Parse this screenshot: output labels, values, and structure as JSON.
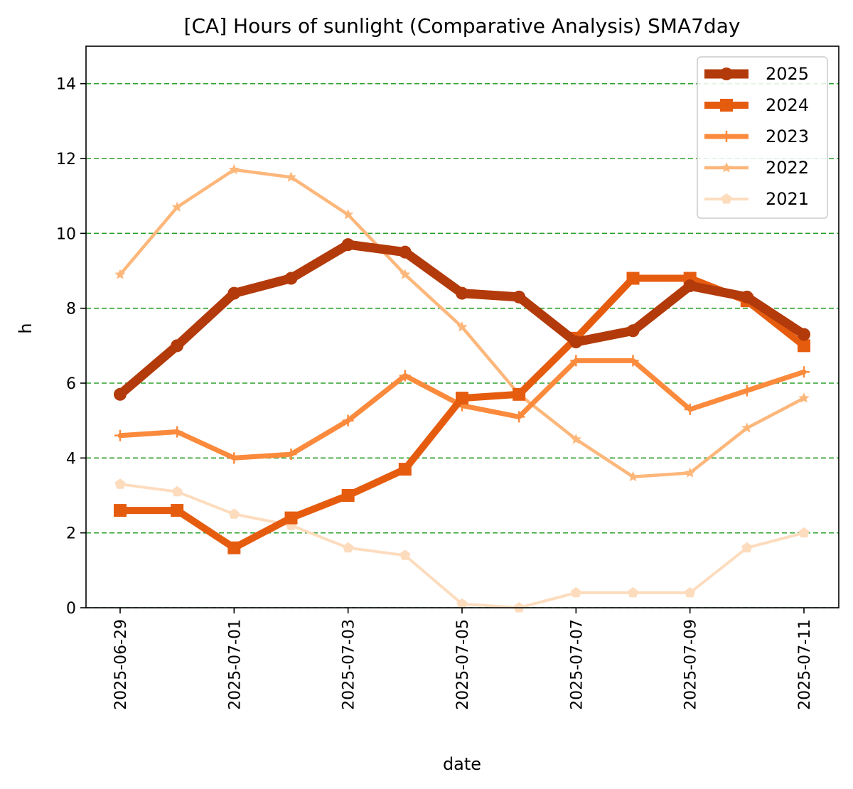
{
  "chart_data": {
    "type": "line",
    "title": "[CA] Hours of sunlight (Comparative Analysis) SMA7day",
    "xlabel": "date",
    "ylabel": "h",
    "ylim": [
      0,
      15
    ],
    "yticks": [
      0,
      2,
      4,
      6,
      8,
      10,
      12,
      14
    ],
    "grid": "horizontal dashed",
    "legend_position": "top-right",
    "x": [
      "2025-06-29",
      "2025-06-30",
      "2025-07-01",
      "2025-07-02",
      "2025-07-03",
      "2025-07-04",
      "2025-07-05",
      "2025-07-06",
      "2025-07-07",
      "2025-07-08",
      "2025-07-09",
      "2025-07-10",
      "2025-07-11"
    ],
    "xticks": [
      "2025-06-29",
      "2025-07-01",
      "2025-07-03",
      "2025-07-05",
      "2025-07-07",
      "2025-07-09",
      "2025-07-11"
    ],
    "series": [
      {
        "name": "2025",
        "color": "#b33a0a",
        "marker": "circle",
        "values": [
          5.7,
          7.0,
          8.4,
          8.8,
          9.7,
          9.5,
          8.4,
          8.3,
          7.1,
          7.4,
          8.6,
          8.3,
          7.3
        ]
      },
      {
        "name": "2024",
        "color": "#e65c0f",
        "marker": "square",
        "values": [
          2.6,
          2.6,
          1.6,
          2.4,
          3.0,
          3.7,
          5.6,
          5.7,
          7.2,
          8.8,
          8.8,
          8.2,
          7.0
        ]
      },
      {
        "name": "2023",
        "color": "#fb8a3c",
        "marker": "plus",
        "values": [
          4.6,
          4.7,
          4.0,
          4.1,
          5.0,
          6.2,
          5.4,
          5.1,
          6.6,
          6.6,
          5.3,
          5.8,
          6.3
        ]
      },
      {
        "name": "2022",
        "color": "#fdb77b",
        "marker": "star",
        "values": [
          8.9,
          10.7,
          11.7,
          11.5,
          10.5,
          8.9,
          7.5,
          5.7,
          4.5,
          3.5,
          3.6,
          4.8,
          5.6
        ]
      },
      {
        "name": "2021",
        "color": "#fddcbe",
        "marker": "pentagon",
        "values": [
          3.3,
          3.1,
          2.5,
          2.2,
          1.6,
          1.4,
          0.1,
          0.0,
          0.4,
          0.4,
          0.4,
          1.6,
          2.0
        ]
      }
    ],
    "colors": {
      "grid": "#2ca02c",
      "axis": "#000000"
    }
  }
}
